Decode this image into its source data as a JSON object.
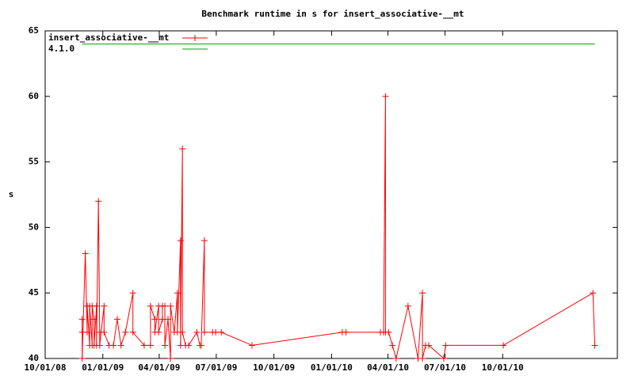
{
  "chart_data": {
    "type": "line",
    "title": "Benchmark runtime in s for insert_associative-__mt",
    "y_label": "s",
    "xlim": [
      "10/01/08",
      "04/02/11"
    ],
    "xticks": [
      "10/01/08",
      "01/01/09",
      "04/01/09",
      "07/01/09",
      "10/01/09",
      "01/01/10",
      "04/01/10",
      "07/01/10",
      "10/01/10"
    ],
    "ylim": [
      40,
      65
    ],
    "yticks": [
      40,
      45,
      50,
      55,
      60,
      65
    ],
    "legend": "top-left",
    "series": [
      {
        "name": "insert_associative-__mt",
        "color": "#ff0000",
        "marker": "+",
        "x": [
          "11/29/08",
          "11/29/08",
          "11/29/08",
          "12/04/08",
          "12/07/08",
          "12/07/08",
          "12/11/08",
          "12/11/08",
          "12/15/08",
          "12/15/08",
          "12/18/08",
          "12/18/08",
          "12/22/08",
          "12/22/08",
          "12/25/08",
          "12/27/08",
          "12/27/08",
          "01/03/09",
          "01/03/09",
          "01/11/09",
          "01/18/09",
          "01/24/09",
          "01/30/09",
          "02/06/09",
          "02/18/09",
          "02/18/09",
          "03/08/09",
          "03/18/09",
          "03/18/09",
          "03/25/09",
          "03/25/09",
          "03/31/09",
          "03/31/09",
          "04/06/09",
          "04/06/09",
          "04/10/09",
          "04/10/09",
          "04/15/09",
          "04/19/09",
          "04/19/09",
          "04/25/09",
          "04/30/09",
          "04/30/09",
          "05/05/09",
          "05/05/09",
          "05/08/09",
          "05/08/09",
          "05/13/09",
          "05/18/09",
          "05/31/09",
          "06/05/09",
          "06/07/09",
          "06/12/09",
          "06/12/09",
          "06/25/09",
          "06/30/09",
          "07/09/09",
          "08/27/09",
          "01/18/10",
          "01/24/10",
          "03/20/10",
          "03/25/10",
          "03/28/10",
          "03/28/10",
          "04/02/10",
          "04/08/10",
          "04/14/10",
          "05/03/10",
          "05/19/10",
          "05/26/10",
          "05/26/10",
          "05/31/10",
          "06/05/10",
          "06/29/10",
          "07/02/10",
          "10/02/10",
          "02/22/11",
          "02/25/11"
        ],
        "values": [
          42,
          43,
          40,
          48,
          42,
          44,
          41,
          44,
          41,
          44,
          43,
          41,
          44,
          41,
          52,
          42,
          41,
          44,
          42,
          41,
          41,
          43,
          41,
          42,
          45,
          42,
          41,
          41,
          44,
          43,
          42,
          44,
          42,
          43,
          44,
          44,
          41,
          43,
          40,
          44,
          42,
          45,
          42,
          49,
          41,
          56,
          42,
          41,
          41,
          42,
          41,
          41,
          49,
          42,
          42,
          42,
          42,
          41,
          42,
          42,
          42,
          42,
          60,
          42,
          42,
          41,
          40,
          44,
          40,
          45,
          40,
          41,
          41,
          40,
          41,
          41,
          45,
          41
        ]
      },
      {
        "name": "4.1.0",
        "color": "#00a000",
        "x": [
          "11/29/08",
          "02/25/11"
        ],
        "values": [
          64,
          64
        ]
      }
    ]
  }
}
